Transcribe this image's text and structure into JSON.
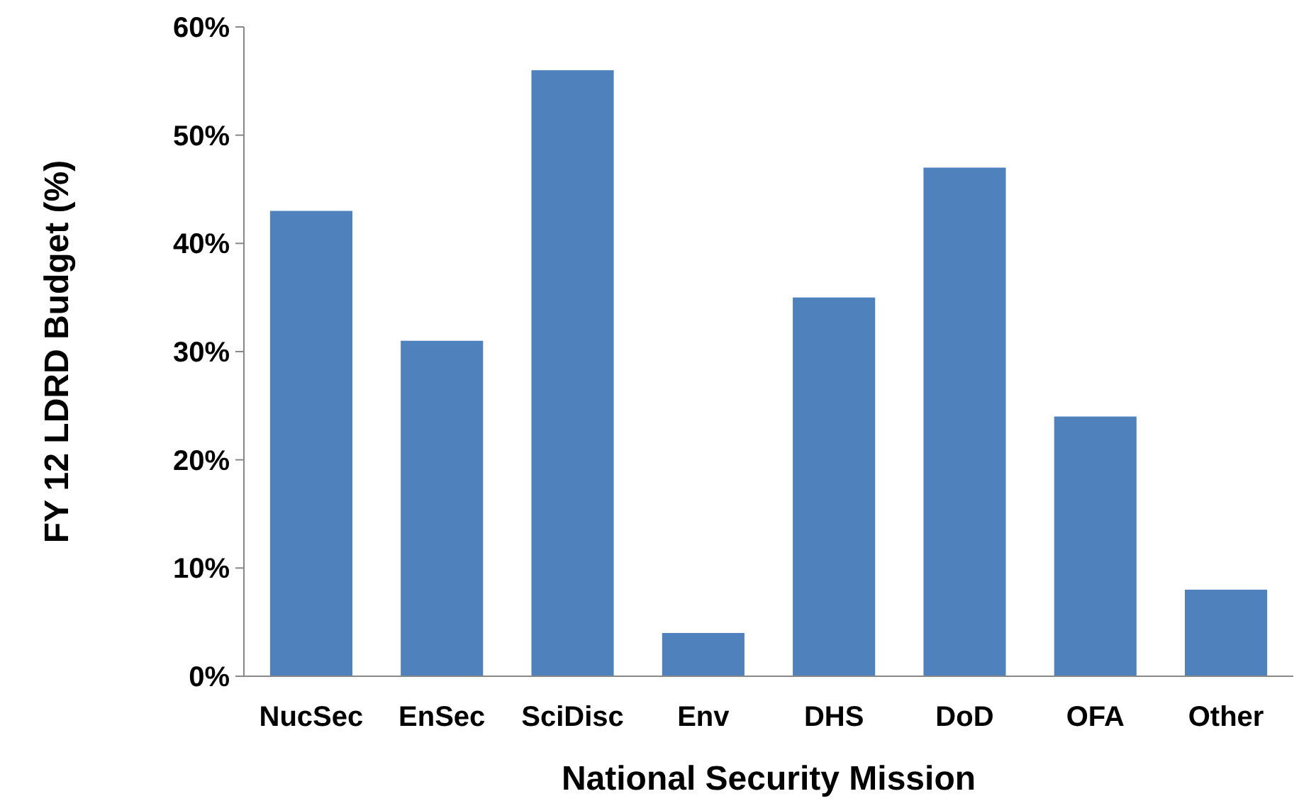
{
  "chart_data": {
    "type": "bar",
    "xlabel": "National Security Mission",
    "ylabel": "FY 12 LDRD Budget (%)",
    "categories": [
      "NucSec",
      "EnSec",
      "SciDisc",
      "Env",
      "DHS",
      "DoD",
      "OFA",
      "Other"
    ],
    "values": [
      43,
      31,
      56,
      4,
      35,
      47,
      24,
      8
    ],
    "color": "#4f81bd",
    "ylim": [
      0,
      60
    ],
    "yticks": [
      {
        "value": 0,
        "label": "0%"
      },
      {
        "value": 10,
        "label": "10%"
      },
      {
        "value": 20,
        "label": "20%"
      },
      {
        "value": 30,
        "label": "30%"
      },
      {
        "value": 40,
        "label": "40%"
      },
      {
        "value": 50,
        "label": "50%"
      },
      {
        "value": 60,
        "label": "60%"
      }
    ],
    "grid": false
  }
}
